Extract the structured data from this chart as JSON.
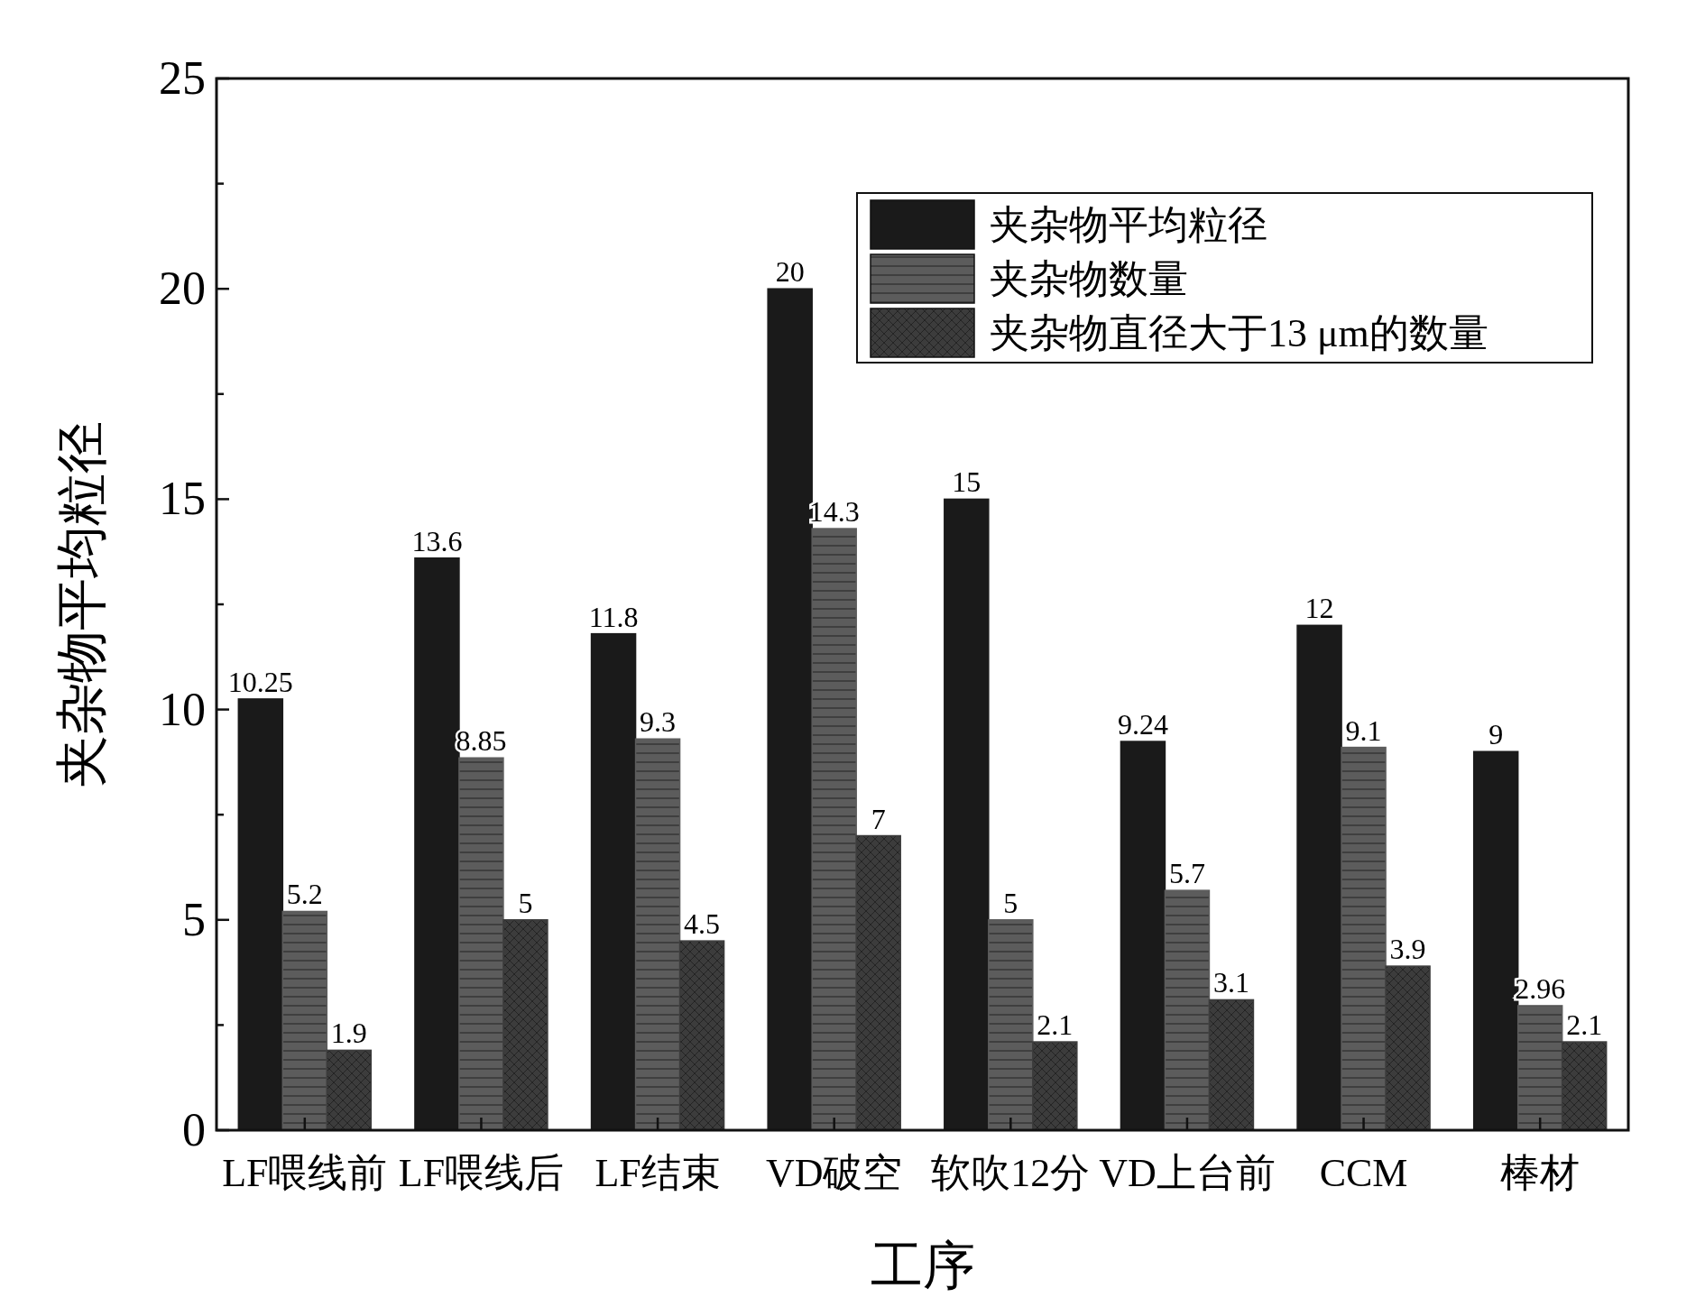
{
  "chart_data": {
    "type": "bar",
    "xlabel": "工序",
    "ylabel": "夹杂物平均粒径",
    "categories": [
      "LF喂线前",
      "LF喂线后",
      "LF结束",
      "VD破空",
      "软吹12分",
      "VD上台前",
      "CCM",
      "棒材"
    ],
    "series": [
      {
        "name": "夹杂物平均粒径",
        "color": "#1a1a1a",
        "values": [
          10.25,
          13.6,
          11.8,
          20,
          15,
          9.24,
          12,
          9
        ]
      },
      {
        "name": "夹杂物数量",
        "color": "#5c5c5c",
        "values": [
          5.2,
          8.85,
          9.3,
          14.3,
          5,
          5.7,
          9.1,
          2.96
        ]
      },
      {
        "name": "夹杂物直径大于13 μm的数量",
        "color": "#3c3c3c",
        "values": [
          1.9,
          5,
          4.5,
          7,
          2.1,
          3.1,
          3.9,
          2.1
        ]
      }
    ],
    "ylim": [
      0,
      25
    ],
    "yticks": [
      0,
      {
        "value": 2.5,
        "label": null
      },
      5,
      {
        "value": 7.5,
        "label": null
      },
      10,
      {
        "value": 12.5,
        "label": null
      },
      15,
      {
        "value": 17.5,
        "label": null
      },
      20,
      {
        "value": 22.5,
        "label": null
      },
      25
    ],
    "data_labels": true,
    "legend": "top right",
    "grid": false
  }
}
